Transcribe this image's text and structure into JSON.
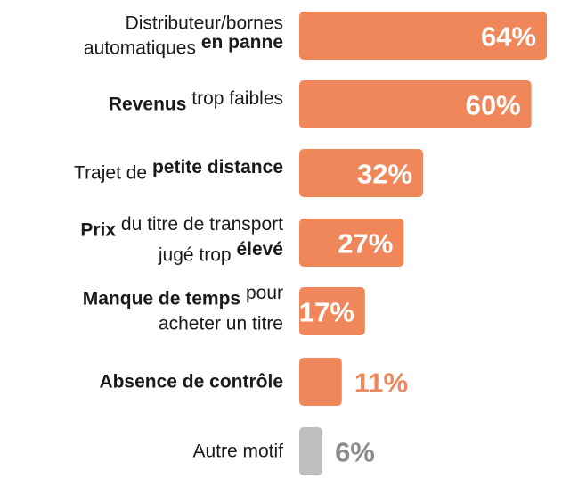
{
  "chart_data": {
    "type": "bar",
    "orientation": "horizontal",
    "categories": [
      "Distributeur/bornes automatiques en panne",
      "Revenus trop faibles",
      "Trajet de petite distance",
      "Prix du titre de transport jugé trop élevé",
      "Manque de temps pour acheter un titre",
      "Absence de contrôle",
      "Autre motif"
    ],
    "category_lines": [
      [
        [
          {
            "text": "Distributeur/bornes",
            "bold": false
          }
        ],
        [
          {
            "text": "automatiques ",
            "bold": false
          },
          {
            "text": "en panne",
            "bold": true
          }
        ]
      ],
      [
        [
          {
            "text": "Revenus",
            "bold": true
          },
          {
            "text": " trop faibles",
            "bold": false
          }
        ]
      ],
      [
        [
          {
            "text": "Trajet de ",
            "bold": false
          },
          {
            "text": "petite distance",
            "bold": true
          }
        ]
      ],
      [
        [
          {
            "text": "Prix",
            "bold": true
          },
          {
            "text": " du titre de transport",
            "bold": false
          }
        ],
        [
          {
            "text": "jugé trop ",
            "bold": false
          },
          {
            "text": "élevé",
            "bold": true
          }
        ]
      ],
      [
        [
          {
            "text": "Manque de temps",
            "bold": true
          },
          {
            "text": " pour",
            "bold": false
          }
        ],
        [
          {
            "text": "acheter un titre",
            "bold": false
          }
        ]
      ],
      [
        [
          {
            "text": "Absence de contrôle",
            "bold": true
          }
        ]
      ],
      [
        [
          {
            "text": "Autre motif",
            "bold": false
          }
        ]
      ]
    ],
    "values": [
      64,
      60,
      32,
      27,
      17,
      11,
      6
    ],
    "value_labels": [
      "64%",
      "60%",
      "32%",
      "27%",
      "17%",
      "11%",
      "6%"
    ],
    "bar_colors": [
      "#f0875a",
      "#f0875a",
      "#f0875a",
      "#f0875a",
      "#f0875a",
      "#f0875a",
      "#bfbfbf"
    ],
    "value_label_colors": [
      "#ffffff",
      "#ffffff",
      "#ffffff",
      "#ffffff",
      "#ffffff",
      "#f0875a",
      "#8c8c8c"
    ],
    "value_label_position": [
      "inside",
      "inside",
      "inside",
      "inside",
      "inside",
      "outside",
      "outside"
    ],
    "xlim": [
      0,
      64
    ],
    "title": "",
    "xlabel": "",
    "ylabel": "",
    "grid": false,
    "legend": "none"
  }
}
